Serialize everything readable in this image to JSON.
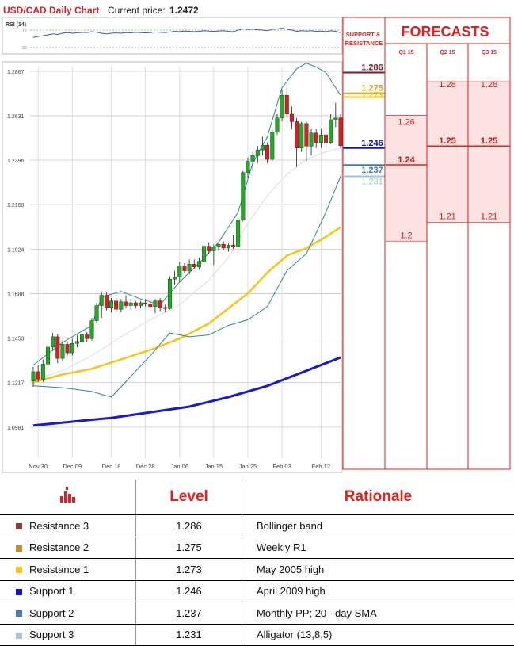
{
  "header": {
    "title": "USD/CAD Daily Chart",
    "price_label": "Current price:",
    "price_value": "1.2472"
  },
  "chart_data": [
    {
      "type": "candlestick",
      "title": "USD/CAD Daily Chart",
      "ylim": [
        1.08,
        1.29
      ],
      "y_ticks": [
        "1.2867",
        "1.2631",
        "1.2396",
        "1.2160",
        "1.1924",
        "1.1688",
        "1.1453",
        "1.1217",
        "1.0981"
      ],
      "x_ticks": [
        "Nov 30",
        "Dec 09",
        "Dec 18",
        "Dec 28",
        "Jan 06",
        "Jan 15",
        "Jan 25",
        "Feb 03",
        "Feb 12"
      ],
      "candles": [
        {
          "o": 1.1225,
          "h": 1.13,
          "l": 1.1195,
          "c": 1.1275
        },
        {
          "o": 1.1275,
          "h": 1.131,
          "l": 1.122,
          "c": 1.1235
        },
        {
          "o": 1.1235,
          "h": 1.134,
          "l": 1.122,
          "c": 1.1315
        },
        {
          "o": 1.1315,
          "h": 1.142,
          "l": 1.1295,
          "c": 1.1405
        },
        {
          "o": 1.1405,
          "h": 1.148,
          "l": 1.1385,
          "c": 1.146
        },
        {
          "o": 1.146,
          "h": 1.1475,
          "l": 1.132,
          "c": 1.1345
        },
        {
          "o": 1.1345,
          "h": 1.144,
          "l": 1.133,
          "c": 1.142
        },
        {
          "o": 1.142,
          "h": 1.1435,
          "l": 1.136,
          "c": 1.1375
        },
        {
          "o": 1.1375,
          "h": 1.145,
          "l": 1.136,
          "c": 1.1425
        },
        {
          "o": 1.1425,
          "h": 1.147,
          "l": 1.1405,
          "c": 1.1435
        },
        {
          "o": 1.1435,
          "h": 1.149,
          "l": 1.142,
          "c": 1.147
        },
        {
          "o": 1.147,
          "h": 1.1485,
          "l": 1.143,
          "c": 1.145
        },
        {
          "o": 1.145,
          "h": 1.156,
          "l": 1.144,
          "c": 1.1545
        },
        {
          "o": 1.1545,
          "h": 1.164,
          "l": 1.153,
          "c": 1.1625
        },
        {
          "o": 1.1625,
          "h": 1.17,
          "l": 1.156,
          "c": 1.168
        },
        {
          "o": 1.168,
          "h": 1.17,
          "l": 1.16,
          "c": 1.1615
        },
        {
          "o": 1.1615,
          "h": 1.1665,
          "l": 1.159,
          "c": 1.165
        },
        {
          "o": 1.165,
          "h": 1.167,
          "l": 1.159,
          "c": 1.1605
        },
        {
          "o": 1.1605,
          "h": 1.166,
          "l": 1.159,
          "c": 1.1645
        },
        {
          "o": 1.1645,
          "h": 1.168,
          "l": 1.161,
          "c": 1.1625
        },
        {
          "o": 1.1625,
          "h": 1.166,
          "l": 1.16,
          "c": 1.164
        },
        {
          "o": 1.164,
          "h": 1.165,
          "l": 1.161,
          "c": 1.1625
        },
        {
          "o": 1.1625,
          "h": 1.165,
          "l": 1.161,
          "c": 1.164
        },
        {
          "o": 1.164,
          "h": 1.166,
          "l": 1.162,
          "c": 1.1635
        },
        {
          "o": 1.1635,
          "h": 1.1655,
          "l": 1.161,
          "c": 1.162
        },
        {
          "o": 1.162,
          "h": 1.166,
          "l": 1.1585,
          "c": 1.165
        },
        {
          "o": 1.165,
          "h": 1.1665,
          "l": 1.1595,
          "c": 1.1615
        },
        {
          "o": 1.1615,
          "h": 1.163,
          "l": 1.159,
          "c": 1.161
        },
        {
          "o": 1.161,
          "h": 1.178,
          "l": 1.1605,
          "c": 1.1765
        },
        {
          "o": 1.1765,
          "h": 1.181,
          "l": 1.1735,
          "c": 1.1775
        },
        {
          "o": 1.1775,
          "h": 1.1855,
          "l": 1.175,
          "c": 1.1835
        },
        {
          "o": 1.1835,
          "h": 1.185,
          "l": 1.18,
          "c": 1.181
        },
        {
          "o": 1.181,
          "h": 1.187,
          "l": 1.179,
          "c": 1.1845
        },
        {
          "o": 1.1845,
          "h": 1.187,
          "l": 1.182,
          "c": 1.183
        },
        {
          "o": 1.183,
          "h": 1.188,
          "l": 1.1815,
          "c": 1.186
        },
        {
          "o": 1.186,
          "h": 1.195,
          "l": 1.1855,
          "c": 1.194
        },
        {
          "o": 1.194,
          "h": 1.196,
          "l": 1.19,
          "c": 1.1915
        },
        {
          "o": 1.1915,
          "h": 1.195,
          "l": 1.184,
          "c": 1.1935
        },
        {
          "o": 1.1935,
          "h": 1.196,
          "l": 1.1915,
          "c": 1.195
        },
        {
          "o": 1.195,
          "h": 1.1965,
          "l": 1.192,
          "c": 1.193
        },
        {
          "o": 1.193,
          "h": 1.1955,
          "l": 1.191,
          "c": 1.1945
        },
        {
          "o": 1.1945,
          "h": 1.2,
          "l": 1.1925,
          "c": 1.1935
        },
        {
          "o": 1.1935,
          "h": 1.209,
          "l": 1.1925,
          "c": 1.208
        },
        {
          "o": 1.208,
          "h": 1.234,
          "l": 1.207,
          "c": 1.233
        },
        {
          "o": 1.233,
          "h": 1.241,
          "l": 1.23,
          "c": 1.239
        },
        {
          "o": 1.239,
          "h": 1.244,
          "l": 1.234,
          "c": 1.242
        },
        {
          "o": 1.242,
          "h": 1.247,
          "l": 1.238,
          "c": 1.245
        },
        {
          "o": 1.245,
          "h": 1.252,
          "l": 1.242,
          "c": 1.2475
        },
        {
          "o": 1.2475,
          "h": 1.249,
          "l": 1.238,
          "c": 1.24
        },
        {
          "o": 1.24,
          "h": 1.256,
          "l": 1.239,
          "c": 1.2545
        },
        {
          "o": 1.2545,
          "h": 1.264,
          "l": 1.253,
          "c": 1.262
        },
        {
          "o": 1.262,
          "h": 1.277,
          "l": 1.26,
          "c": 1.274
        },
        {
          "o": 1.274,
          "h": 1.2795,
          "l": 1.262,
          "c": 1.264
        },
        {
          "o": 1.264,
          "h": 1.268,
          "l": 1.256,
          "c": 1.26
        },
        {
          "o": 1.26,
          "h": 1.262,
          "l": 1.236,
          "c": 1.246
        },
        {
          "o": 1.246,
          "h": 1.26,
          "l": 1.244,
          "c": 1.259
        },
        {
          "o": 1.259,
          "h": 1.26,
          "l": 1.239,
          "c": 1.247
        },
        {
          "o": 1.247,
          "h": 1.256,
          "l": 1.242,
          "c": 1.254
        },
        {
          "o": 1.254,
          "h": 1.256,
          "l": 1.246,
          "c": 1.249
        },
        {
          "o": 1.249,
          "h": 1.256,
          "l": 1.246,
          "c": 1.253
        },
        {
          "o": 1.253,
          "h": 1.257,
          "l": 1.247,
          "c": 1.249
        },
        {
          "o": 1.249,
          "h": 1.264,
          "l": 1.248,
          "c": 1.261
        },
        {
          "o": 1.261,
          "h": 1.27,
          "l": 1.257,
          "c": 1.262
        },
        {
          "o": 1.262,
          "h": 1.264,
          "l": 1.246,
          "c": 1.2472
        }
      ],
      "bollinger_upper": [
        [
          0,
          1.131
        ],
        [
          6,
          1.143
        ],
        [
          12,
          1.152
        ],
        [
          14,
          1.167
        ],
        [
          18,
          1.17
        ],
        [
          22,
          1.166
        ],
        [
          26,
          1.163
        ],
        [
          30,
          1.175
        ],
        [
          34,
          1.185
        ],
        [
          38,
          1.196
        ],
        [
          42,
          1.212
        ],
        [
          45,
          1.238
        ],
        [
          48,
          1.252
        ],
        [
          51,
          1.278
        ],
        [
          54,
          1.288
        ],
        [
          56,
          1.291
        ],
        [
          58,
          1.289
        ],
        [
          60,
          1.286
        ],
        [
          63,
          1.274
        ]
      ],
      "bollinger_middle": [
        [
          0,
          1.123
        ],
        [
          6,
          1.128
        ],
        [
          12,
          1.136
        ],
        [
          18,
          1.146
        ],
        [
          24,
          1.155
        ],
        [
          30,
          1.163
        ],
        [
          36,
          1.176
        ],
        [
          40,
          1.188
        ],
        [
          44,
          1.206
        ],
        [
          48,
          1.221
        ],
        [
          52,
          1.232
        ],
        [
          56,
          1.24
        ],
        [
          60,
          1.244
        ],
        [
          63,
          1.246
        ]
      ],
      "bollinger_lower": [
        [
          0,
          1.12
        ],
        [
          6,
          1.119
        ],
        [
          12,
          1.117
        ],
        [
          16,
          1.114
        ],
        [
          20,
          1.125
        ],
        [
          24,
          1.136
        ],
        [
          28,
          1.148
        ],
        [
          32,
          1.146
        ],
        [
          36,
          1.147
        ],
        [
          40,
          1.152
        ],
        [
          44,
          1.155
        ],
        [
          48,
          1.162
        ],
        [
          52,
          1.181
        ],
        [
          56,
          1.19
        ],
        [
          60,
          1.212
        ],
        [
          63,
          1.231
        ]
      ],
      "sma_yellow": [
        [
          0,
          1.122
        ],
        [
          6,
          1.126
        ],
        [
          12,
          1.129
        ],
        [
          18,
          1.134
        ],
        [
          24,
          1.139
        ],
        [
          30,
          1.145
        ],
        [
          36,
          1.153
        ],
        [
          40,
          1.161
        ],
        [
          44,
          1.169
        ],
        [
          48,
          1.18
        ],
        [
          52,
          1.189
        ],
        [
          56,
          1.193
        ],
        [
          60,
          1.199
        ],
        [
          63,
          1.204
        ]
      ],
      "sma_blue": [
        [
          0,
          1.099
        ],
        [
          8,
          1.101
        ],
        [
          16,
          1.103
        ],
        [
          24,
          1.106
        ],
        [
          32,
          1.109
        ],
        [
          40,
          1.114
        ],
        [
          48,
          1.12
        ],
        [
          56,
          1.128
        ],
        [
          63,
          1.135
        ]
      ],
      "rsi": {
        "label": "RSI (14)",
        "levels": [
          "70",
          "30"
        ],
        "values": [
          47,
          50,
          52,
          55,
          58,
          56,
          60,
          62,
          60,
          61,
          63,
          62,
          65,
          63,
          60,
          58,
          60,
          61,
          60,
          62,
          61,
          63,
          62,
          61,
          62,
          64,
          63,
          62,
          64,
          66,
          65,
          67,
          66,
          65,
          66,
          68,
          67,
          66,
          67,
          68,
          66,
          65,
          70,
          74,
          72,
          73,
          71,
          70,
          68,
          72,
          74,
          76,
          73,
          70,
          66,
          68,
          67,
          68,
          66,
          67,
          65,
          68,
          66,
          62
        ]
      }
    },
    {
      "type": "table",
      "support_resistance_label": "SUPPORT & RESISTANCE",
      "levels": [
        {
          "label": "1.286",
          "value": 1.286,
          "color": "#7b1a2a"
        },
        {
          "label": "1.275",
          "value": 1.275,
          "color": "#e0a020"
        },
        {
          "label": "1.273",
          "value": 1.273,
          "color": "#f5c518"
        },
        {
          "label": "1.246",
          "value": 1.246,
          "color": "#1010c0"
        },
        {
          "label": "1.237",
          "value": 1.237,
          "color": "#3a7db0"
        },
        {
          "label": "1.231",
          "value": 1.231,
          "color": "#9ec8da"
        }
      ],
      "title": "FORECASTS",
      "columns": [
        {
          "name": "Q1 15",
          "values": [
            {
              "label": "1.26",
              "value": 1.26
            },
            {
              "label": "1.24",
              "value": 1.24
            },
            {
              "label": "1.2",
              "value": 1.2
            }
          ]
        },
        {
          "name": "Q2 15",
          "values": [
            {
              "label": "1.28",
              "value": 1.28
            },
            {
              "label": "1.25",
              "value": 1.25
            },
            {
              "label": "1.21",
              "value": 1.21
            }
          ]
        },
        {
          "name": "Q3 15",
          "values": [
            {
              "label": "1.28",
              "value": 1.28
            },
            {
              "label": "1.25",
              "value": 1.25
            },
            {
              "label": "1.21",
              "value": 1.21
            }
          ]
        }
      ]
    }
  ],
  "levels_table": {
    "header_level": "Level",
    "header_rationale": "Rationale",
    "icon": "bar-chart-icon",
    "rows": [
      {
        "name": "Resistance 3",
        "level": "1.286",
        "rationale": "Bollinger band",
        "color": "#8b3a3a"
      },
      {
        "name": "Resistance 2",
        "level": "1.275",
        "rationale": "Weekly R1",
        "color": "#c8901a"
      },
      {
        "name": "Resistance 1",
        "level": "1.273",
        "rationale": "May 2005 high",
        "color": "#f5c518"
      },
      {
        "name": "Support 1",
        "level": "1.246",
        "rationale": "April 2009 high",
        "color": "#1010d0"
      },
      {
        "name": "Support 2",
        "level": "1.237",
        "rationale": "Monthly PP; 20– day SMA",
        "color": "#4a7ab8"
      },
      {
        "name": "Support 3",
        "level": "1.231",
        "rationale": "Alligator (13,8,5)",
        "color": "#aec4e0"
      }
    ]
  }
}
